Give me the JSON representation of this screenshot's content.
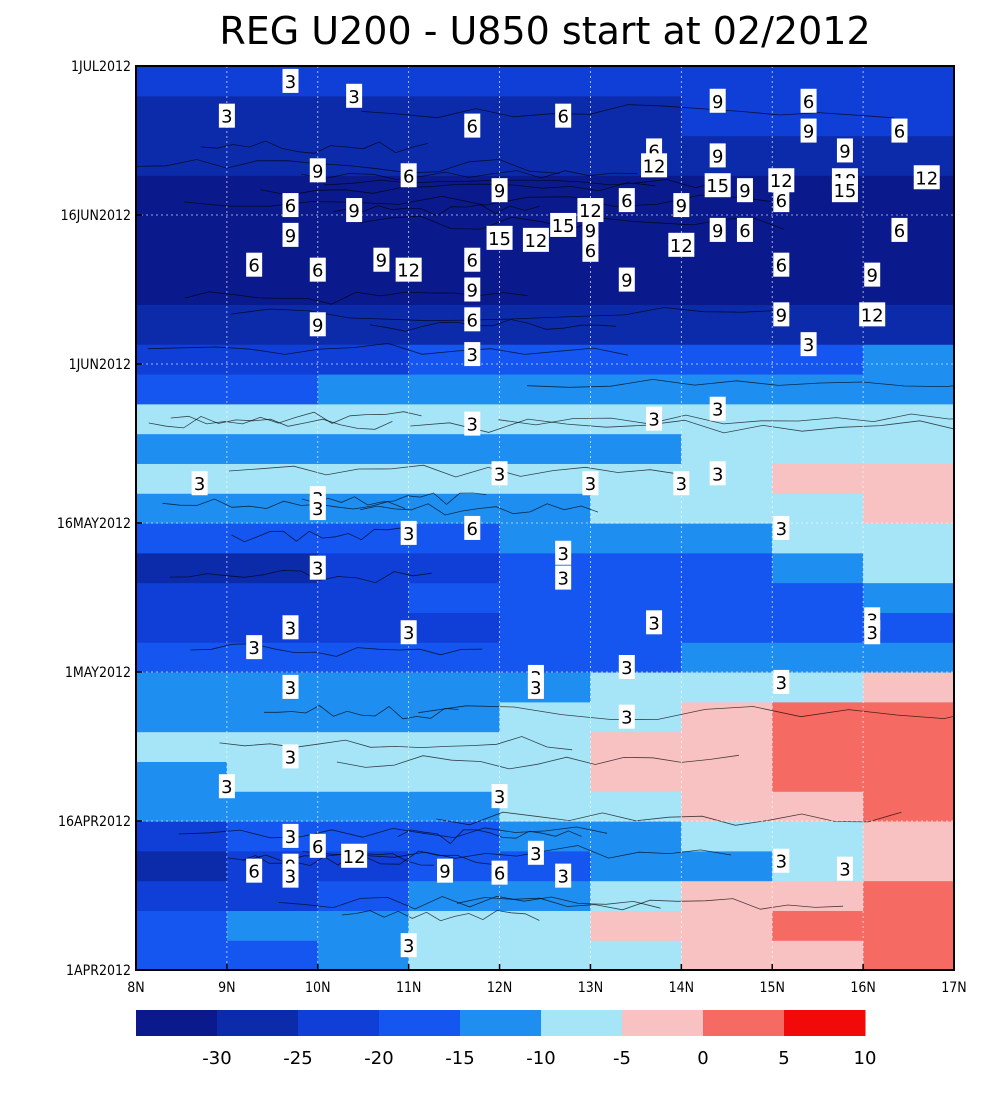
{
  "chart_data": {
    "type": "heatmap",
    "title": "REG U200 - U850 start at 02/2012",
    "xlabel": "",
    "ylabel": "",
    "x_ticks": [
      "8N",
      "9N",
      "10N",
      "11N",
      "12N",
      "13N",
      "14N",
      "15N",
      "16N",
      "17N"
    ],
    "x_range": [
      8,
      17
    ],
    "y_ticks": [
      "1APR2012",
      "16APR2012",
      "1MAY2012",
      "16MAY2012",
      "1JUN2012",
      "16JUN2012",
      "1JUL2012"
    ],
    "y_range_days": [
      0,
      91
    ],
    "grid": true,
    "colorbar": {
      "levels": [
        -30,
        -25,
        -20,
        -15,
        -10,
        -5,
        0,
        5,
        10
      ],
      "tick_labels": [
        "-30",
        "-25",
        "-20",
        "-15",
        "-10",
        "-5",
        "0",
        "5",
        "10"
      ],
      "colors": [
        "#0a1a8c",
        "#0c2bab",
        "#0f3fd6",
        "#1555f0",
        "#1e8ef0",
        "#a6e4f8",
        "#f8c2c2",
        "#f56a62",
        "#f20a0a"
      ]
    },
    "bands": [
      {
        "day": 0,
        "values": [
          -15,
          -15,
          -10,
          -5,
          -5,
          -5,
          0,
          0,
          5,
          10
        ]
      },
      {
        "day": 3,
        "values": [
          -15,
          -10,
          -10,
          -5,
          -5,
          0,
          0,
          5,
          5,
          10
        ]
      },
      {
        "day": 6,
        "values": [
          -20,
          -20,
          -15,
          -10,
          -10,
          -5,
          0,
          0,
          5,
          10
        ]
      },
      {
        "day": 9,
        "values": [
          -25,
          -20,
          -20,
          -15,
          -15,
          -10,
          -10,
          -5,
          0,
          5
        ]
      },
      {
        "day": 12,
        "values": [
          -20,
          -15,
          -15,
          -15,
          -10,
          -10,
          -5,
          -5,
          0,
          5
        ]
      },
      {
        "day": 15,
        "values": [
          -10,
          -10,
          -10,
          -10,
          -5,
          -5,
          0,
          0,
          5,
          5
        ]
      },
      {
        "day": 18,
        "values": [
          -10,
          -5,
          -5,
          -5,
          -5,
          0,
          0,
          5,
          5,
          5
        ]
      },
      {
        "day": 21,
        "values": [
          -5,
          -5,
          -5,
          -5,
          -5,
          0,
          0,
          5,
          5,
          10
        ]
      },
      {
        "day": 24,
        "values": [
          -10,
          -10,
          -10,
          -10,
          -5,
          -5,
          0,
          5,
          5,
          5
        ]
      },
      {
        "day": 27,
        "values": [
          -10,
          -10,
          -10,
          -10,
          -10,
          -5,
          -5,
          -5,
          0,
          0
        ]
      },
      {
        "day": 30,
        "values": [
          -15,
          -15,
          -15,
          -15,
          -15,
          -15,
          -10,
          -10,
          -10,
          -10
        ]
      },
      {
        "day": 33,
        "values": [
          -20,
          -20,
          -20,
          -20,
          -15,
          -15,
          -15,
          -15,
          -15,
          -10
        ]
      },
      {
        "day": 36,
        "values": [
          -20,
          -20,
          -20,
          -15,
          -15,
          -15,
          -15,
          -15,
          -10,
          -10
        ]
      },
      {
        "day": 39,
        "values": [
          -25,
          -25,
          -20,
          -20,
          -15,
          -15,
          -15,
          -10,
          -5,
          -5
        ]
      },
      {
        "day": 42,
        "values": [
          -15,
          -15,
          -15,
          -15,
          -10,
          -10,
          -10,
          -5,
          -5,
          -5
        ]
      },
      {
        "day": 45,
        "values": [
          -10,
          -10,
          -10,
          -10,
          -10,
          -5,
          -5,
          -5,
          0,
          0
        ]
      },
      {
        "day": 48,
        "values": [
          -5,
          -5,
          -5,
          -5,
          -5,
          -5,
          -5,
          0,
          0,
          5
        ]
      },
      {
        "day": 51,
        "values": [
          -10,
          -10,
          -10,
          -10,
          -10,
          -10,
          -5,
          -5,
          -5,
          -5
        ]
      },
      {
        "day": 54,
        "values": [
          -5,
          -5,
          -5,
          -5,
          -5,
          -5,
          -5,
          -5,
          -5,
          -5
        ]
      },
      {
        "day": 57,
        "values": [
          -15,
          -15,
          -10,
          -10,
          -10,
          -10,
          -10,
          -10,
          -10,
          -5
        ]
      },
      {
        "day": 60,
        "values": [
          -20,
          -20,
          -20,
          -15,
          -15,
          -15,
          -15,
          -15,
          -10,
          -10
        ]
      },
      {
        "day": 63,
        "values": [
          -25,
          -25,
          -25,
          -25,
          -25,
          -25,
          -25,
          -25,
          -25,
          -25
        ]
      },
      {
        "day": 67,
        "values": [
          -30,
          -30,
          -30,
          -30,
          -30,
          -30,
          -30,
          -30,
          -30,
          -30
        ]
      },
      {
        "day": 72,
        "values": [
          -30,
          -30,
          -30,
          -30,
          -30,
          -30,
          -30,
          -30,
          -30,
          -30
        ]
      },
      {
        "day": 76,
        "values": [
          -30,
          -30,
          -30,
          -30,
          -30,
          -30,
          -30,
          -30,
          -30,
          -30
        ]
      },
      {
        "day": 80,
        "values": [
          -25,
          -25,
          -25,
          -25,
          -25,
          -25,
          -25,
          -25,
          -25,
          -25
        ]
      },
      {
        "day": 84,
        "values": [
          -25,
          -25,
          -25,
          -25,
          -25,
          -25,
          -20,
          -20,
          -20,
          -20
        ]
      },
      {
        "day": 88,
        "values": [
          -20,
          -20,
          -20,
          -20,
          -20,
          -20,
          -20,
          -20,
          -20,
          -20
        ]
      }
    ],
    "contour_labels": [
      {
        "text": "3",
        "x": 9.7,
        "day": 89.5
      },
      {
        "text": "3",
        "x": 10.4,
        "day": 88
      },
      {
        "text": "3",
        "x": 9.0,
        "day": 86
      },
      {
        "text": "6",
        "x": 11.7,
        "day": 85
      },
      {
        "text": "6",
        "x": 12.7,
        "day": 86
      },
      {
        "text": "9",
        "x": 14.4,
        "day": 87.5
      },
      {
        "text": "6",
        "x": 15.4,
        "day": 87.5
      },
      {
        "text": "9",
        "x": 15.4,
        "day": 84.5
      },
      {
        "text": "6",
        "x": 16.4,
        "day": 84.5
      },
      {
        "text": "6",
        "x": 13.7,
        "day": 82.5
      },
      {
        "text": "12",
        "x": 13.7,
        "day": 81
      },
      {
        "text": "9",
        "x": 14.4,
        "day": 82
      },
      {
        "text": "9",
        "x": 15.8,
        "day": 82.5
      },
      {
        "text": "9",
        "x": 10.0,
        "day": 80.5
      },
      {
        "text": "6",
        "x": 11.0,
        "day": 80
      },
      {
        "text": "15",
        "x": 14.4,
        "day": 79
      },
      {
        "text": "9",
        "x": 14.7,
        "day": 78.5
      },
      {
        "text": "12",
        "x": 15.1,
        "day": 79.5
      },
      {
        "text": "18",
        "x": 15.8,
        "day": 79.5
      },
      {
        "text": "15",
        "x": 15.8,
        "day": 78.5
      },
      {
        "text": "12",
        "x": 16.7,
        "day": 79.8
      },
      {
        "text": "9",
        "x": 12.0,
        "day": 78.5
      },
      {
        "text": "6",
        "x": 9.7,
        "day": 77
      },
      {
        "text": "9",
        "x": 10.4,
        "day": 76.5
      },
      {
        "text": "12",
        "x": 13.0,
        "day": 76.5
      },
      {
        "text": "6",
        "x": 13.4,
        "day": 77.5
      },
      {
        "text": "9",
        "x": 14.0,
        "day": 77
      },
      {
        "text": "6",
        "x": 15.1,
        "day": 77.5
      },
      {
        "text": "15",
        "x": 12.7,
        "day": 75
      },
      {
        "text": "9",
        "x": 13.0,
        "day": 74.5
      },
      {
        "text": "9",
        "x": 14.4,
        "day": 74.5
      },
      {
        "text": "6",
        "x": 14.7,
        "day": 74.5
      },
      {
        "text": "6",
        "x": 16.4,
        "day": 74.5
      },
      {
        "text": "9",
        "x": 9.7,
        "day": 74
      },
      {
        "text": "15",
        "x": 12.0,
        "day": 73.7
      },
      {
        "text": "12",
        "x": 12.4,
        "day": 73.5
      },
      {
        "text": "6",
        "x": 13.0,
        "day": 72.5
      },
      {
        "text": "12",
        "x": 14.0,
        "day": 73
      },
      {
        "text": "6",
        "x": 9.3,
        "day": 71
      },
      {
        "text": "6",
        "x": 10.0,
        "day": 70.5
      },
      {
        "text": "9",
        "x": 10.7,
        "day": 71.5
      },
      {
        "text": "12",
        "x": 11.0,
        "day": 70.5
      },
      {
        "text": "6",
        "x": 11.7,
        "day": 71.5
      },
      {
        "text": "9",
        "x": 11.7,
        "day": 68.5
      },
      {
        "text": "9",
        "x": 13.4,
        "day": 69.5
      },
      {
        "text": "6",
        "x": 15.1,
        "day": 71
      },
      {
        "text": "9",
        "x": 16.1,
        "day": 70
      },
      {
        "text": "9",
        "x": 10.0,
        "day": 65
      },
      {
        "text": "6",
        "x": 11.7,
        "day": 65.5
      },
      {
        "text": "9",
        "x": 15.1,
        "day": 66
      },
      {
        "text": "12",
        "x": 16.1,
        "day": 66
      },
      {
        "text": "3",
        "x": 11.7,
        "day": 62
      },
      {
        "text": "3",
        "x": 15.4,
        "day": 63
      },
      {
        "text": "3",
        "x": 11.7,
        "day": 55
      },
      {
        "text": "3",
        "x": 13.7,
        "day": 55.5
      },
      {
        "text": "3",
        "x": 14.4,
        "day": 56.5
      },
      {
        "text": "3",
        "x": 8.7,
        "day": 49
      },
      {
        "text": "3",
        "x": 12.0,
        "day": 50
      },
      {
        "text": "3",
        "x": 13.0,
        "day": 49
      },
      {
        "text": "3",
        "x": 14.0,
        "day": 49
      },
      {
        "text": "3",
        "x": 14.4,
        "day": 50
      },
      {
        "text": "3",
        "x": 10.0,
        "day": 47.5
      },
      {
        "text": "3",
        "x": 10.0,
        "day": 46.5
      },
      {
        "text": "6",
        "x": 11.7,
        "day": 44.5
      },
      {
        "text": "3",
        "x": 11.0,
        "day": 44
      },
      {
        "text": "3",
        "x": 15.1,
        "day": 44.5
      },
      {
        "text": "3",
        "x": 10.0,
        "day": 40.5
      },
      {
        "text": "3",
        "x": 12.7,
        "day": 42
      },
      {
        "text": "3",
        "x": 12.7,
        "day": 39.5
      },
      {
        "text": "3",
        "x": 9.7,
        "day": 34.5
      },
      {
        "text": "3",
        "x": 11.0,
        "day": 34
      },
      {
        "text": "3",
        "x": 13.7,
        "day": 35
      },
      {
        "text": "3",
        "x": 16.1,
        "day": 35.3
      },
      {
        "text": "3",
        "x": 16.1,
        "day": 34
      },
      {
        "text": "3",
        "x": 9.3,
        "day": 32.5
      },
      {
        "text": "3",
        "x": 13.4,
        "day": 30.5
      },
      {
        "text": "3",
        "x": 12.4,
        "day": 29.5
      },
      {
        "text": "3",
        "x": 12.4,
        "day": 28.5
      },
      {
        "text": "3",
        "x": 9.7,
        "day": 28.5
      },
      {
        "text": "3",
        "x": 15.1,
        "day": 29
      },
      {
        "text": "3",
        "x": 13.4,
        "day": 25.5
      },
      {
        "text": "3",
        "x": 9.7,
        "day": 21.5
      },
      {
        "text": "3",
        "x": 9.0,
        "day": 18.5
      },
      {
        "text": "3",
        "x": 12.0,
        "day": 17.5
      },
      {
        "text": "3",
        "x": 9.7,
        "day": 13.5
      },
      {
        "text": "6",
        "x": 10.0,
        "day": 12.5
      },
      {
        "text": "12",
        "x": 10.4,
        "day": 11.5
      },
      {
        "text": "9",
        "x": 9.7,
        "day": 10.5
      },
      {
        "text": "3",
        "x": 9.7,
        "day": 9.5
      },
      {
        "text": "6",
        "x": 9.3,
        "day": 10
      },
      {
        "text": "9",
        "x": 11.4,
        "day": 10
      },
      {
        "text": "6",
        "x": 12.0,
        "day": 9.8
      },
      {
        "text": "3",
        "x": 12.4,
        "day": 11.8
      },
      {
        "text": "3",
        "x": 12.7,
        "day": 9.5
      },
      {
        "text": "3",
        "x": 15.1,
        "day": 11
      },
      {
        "text": "3",
        "x": 15.8,
        "day": 10.2
      },
      {
        "text": "3",
        "x": 11.0,
        "day": 2.5
      }
    ]
  }
}
